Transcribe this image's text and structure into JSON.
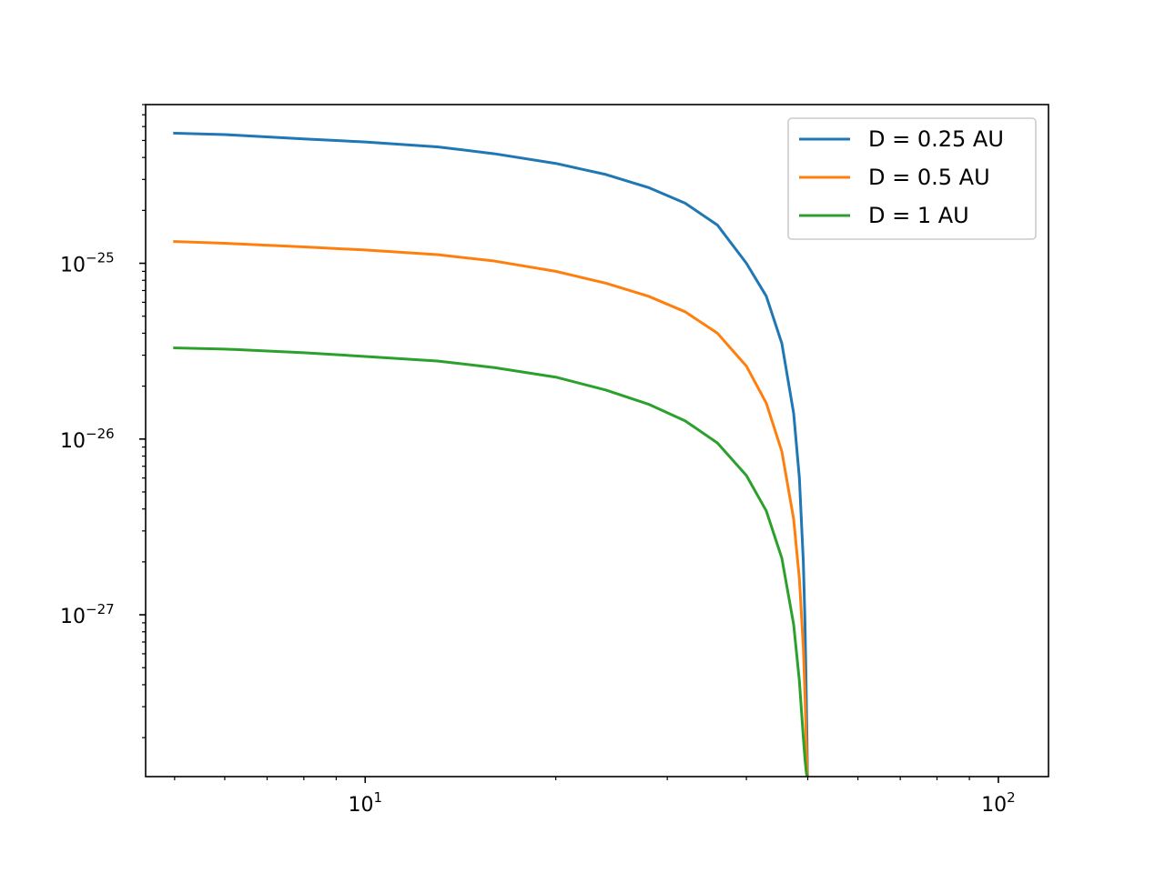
{
  "chart_data": {
    "type": "line",
    "title": "",
    "xlabel": "",
    "ylabel": "",
    "xscale": "log",
    "yscale": "log",
    "xlim": [
      4.5,
      120
    ],
    "ylim": [
      1.2e-28,
      8e-25
    ],
    "grid": false,
    "legend_position": "top-right",
    "x_major_ticks": [
      {
        "value": 10,
        "base": "10",
        "exp": "1"
      },
      {
        "value": 100,
        "base": "10",
        "exp": "2"
      }
    ],
    "y_major_ticks": [
      {
        "value": 1e-25,
        "base": "10",
        "exp": "−25"
      },
      {
        "value": 1e-26,
        "base": "10",
        "exp": "−26"
      },
      {
        "value": 1e-27,
        "base": "10",
        "exp": "−27"
      }
    ],
    "series": [
      {
        "name": "D = 0.25 AU",
        "color": "#1f77b4",
        "x": [
          5.0,
          6.0,
          8.0,
          10.0,
          13.0,
          16.0,
          20.0,
          24.0,
          28.0,
          32.0,
          36.0,
          40.0,
          43.0,
          45.5,
          47.5,
          48.5,
          49.2,
          49.5,
          49.7,
          49.85,
          49.95
        ],
        "y": [
          5.5e-25,
          5.4e-25,
          5.1e-25,
          4.9e-25,
          4.6e-25,
          4.2e-25,
          3.7e-25,
          3.2e-25,
          2.7e-25,
          2.2e-25,
          1.65e-25,
          1e-25,
          6.5e-26,
          3.5e-26,
          1.4e-26,
          6e-27,
          2e-27,
          9e-28,
          4e-28,
          2e-28,
          1.2e-28
        ]
      },
      {
        "name": "D = 0.5 AU",
        "color": "#ff7f0e",
        "x": [
          5.0,
          6.0,
          8.0,
          10.0,
          13.0,
          16.0,
          20.0,
          24.0,
          28.0,
          32.0,
          36.0,
          40.0,
          43.0,
          45.5,
          47.5,
          48.5,
          49.2,
          49.5,
          49.7,
          49.85,
          49.95
        ],
        "y": [
          1.33e-25,
          1.3e-25,
          1.24e-25,
          1.19e-25,
          1.12e-25,
          1.03e-25,
          9e-26,
          7.7e-26,
          6.5e-26,
          5.3e-26,
          4e-26,
          2.6e-26,
          1.6e-26,
          8.5e-27,
          3.5e-27,
          1.6e-27,
          6.5e-28,
          3.5e-28,
          2e-28,
          1.4e-28,
          1.2e-28
        ]
      },
      {
        "name": "D = 1 AU",
        "color": "#2ca02c",
        "x": [
          5.0,
          6.0,
          8.0,
          10.0,
          13.0,
          16.0,
          20.0,
          24.0,
          28.0,
          32.0,
          36.0,
          40.0,
          43.0,
          45.5,
          47.5,
          48.5,
          49.2,
          49.5,
          49.7,
          49.85,
          49.95
        ],
        "y": [
          3.3e-26,
          3.25e-26,
          3.1e-26,
          2.95e-26,
          2.78e-26,
          2.55e-26,
          2.25e-26,
          1.9e-26,
          1.58e-26,
          1.27e-26,
          9.5e-27,
          6.2e-27,
          3.9e-27,
          2.1e-27,
          8.8e-28,
          4.2e-28,
          2e-28,
          1.5e-28,
          1.3e-28,
          1.2e-28,
          1.2e-28
        ]
      }
    ]
  }
}
